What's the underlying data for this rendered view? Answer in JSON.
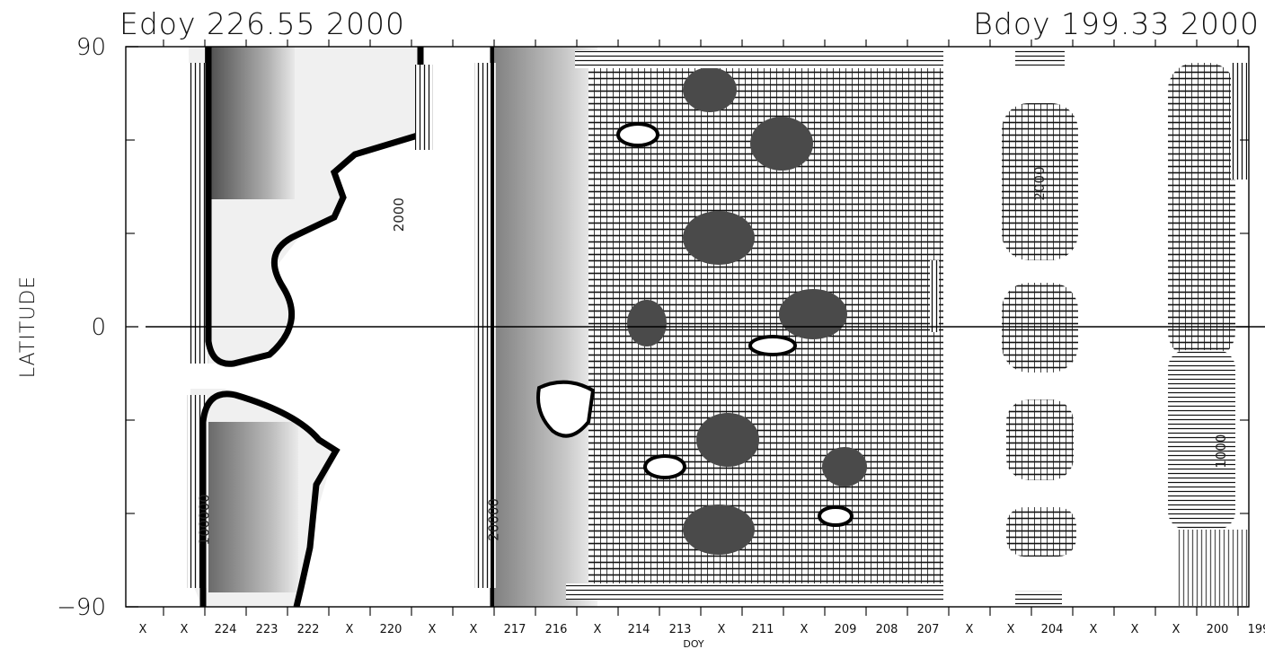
{
  "chart_data": {
    "type": "heatmap",
    "title_left": "Edoy 226.55 2000",
    "title_right": "Bdoy 199.33 2000",
    "xlabel": "DOY",
    "ylabel": "LATITUDE",
    "ylim": [
      -90,
      90
    ],
    "y_ticks": [
      {
        "value": 90,
        "label": "90"
      },
      {
        "value": 0,
        "label": "0"
      },
      {
        "value": -90,
        "label": "−90"
      }
    ],
    "y_minor_ticks": [
      30,
      -30,
      -60,
      60
    ],
    "zero_line": 0,
    "x_axis_reversed": true,
    "x_ticks": [
      {
        "index": 0,
        "label": "X"
      },
      {
        "index": 1,
        "label": "X"
      },
      {
        "index": 2,
        "label": "224"
      },
      {
        "index": 3,
        "label": "223"
      },
      {
        "index": 4,
        "label": "222"
      },
      {
        "index": 5,
        "label": "X"
      },
      {
        "index": 6,
        "label": "220"
      },
      {
        "index": 7,
        "label": "X"
      },
      {
        "index": 8,
        "label": "X"
      },
      {
        "index": 9,
        "label": "217"
      },
      {
        "index": 10,
        "label": "216"
      },
      {
        "index": 11,
        "label": "X"
      },
      {
        "index": 12,
        "label": "214"
      },
      {
        "index": 13,
        "label": "213"
      },
      {
        "index": 14,
        "label": "X"
      },
      {
        "index": 15,
        "label": "211"
      },
      {
        "index": 16,
        "label": "X"
      },
      {
        "index": 17,
        "label": "209"
      },
      {
        "index": 18,
        "label": "208"
      },
      {
        "index": 19,
        "label": "207"
      },
      {
        "index": 20,
        "label": "X"
      },
      {
        "index": 21,
        "label": "X"
      },
      {
        "index": 22,
        "label": "204"
      },
      {
        "index": 23,
        "label": "X"
      },
      {
        "index": 24,
        "label": "X"
      },
      {
        "index": 25,
        "label": "X"
      },
      {
        "index": 26,
        "label": "200"
      },
      {
        "index": 27,
        "label": "199"
      }
    ],
    "contour_labels": [
      {
        "text": "1000",
        "x_index": 26.2,
        "lat": -40
      },
      {
        "text": "2000",
        "x_index": 21.8,
        "lat": 46
      },
      {
        "text": "2000",
        "x_index": 6.3,
        "lat": 36
      },
      {
        "text": "20000",
        "x_index": 8.6,
        "lat": -62
      },
      {
        "text": "100000",
        "x_index": 1.6,
        "lat": -62
      }
    ],
    "grid": false,
    "colormap": "grayscale"
  }
}
